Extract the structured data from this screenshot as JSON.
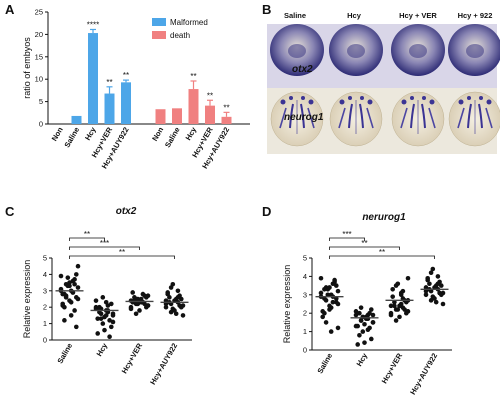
{
  "panels": {
    "A": "A",
    "B": "B",
    "C": "C",
    "D": "D"
  },
  "chart_data": [
    {
      "panel": "A",
      "type": "bar",
      "title": "",
      "ylabel": "ratio of embyos",
      "ylim": [
        0,
        25
      ],
      "yticks": [
        "0",
        "5",
        "10",
        "15",
        "20",
        "25"
      ],
      "colors": {
        "Malformed": "#4da6e8",
        "death": "#f08080"
      },
      "series": [
        {
          "name": "Malformed",
          "categories": [
            "Non",
            "Saline",
            "Hcy",
            "Hcy+VER",
            "Hcy+AUY922"
          ],
          "values": [
            0,
            1.8,
            20.3,
            6.8,
            9.3
          ],
          "errors": [
            0,
            0,
            0.8,
            1.5,
            0.5
          ],
          "sig": [
            "",
            "",
            "****",
            "**",
            "**"
          ]
        },
        {
          "name": "death",
          "categories": [
            "Non",
            "Saline",
            "Hcy",
            "Hcy+VER",
            "Hcy+AUY922"
          ],
          "values": [
            3.3,
            3.5,
            7.8,
            4.1,
            1.6
          ],
          "errors": [
            0,
            0,
            1.8,
            1.2,
            1.0
          ],
          "sig": [
            "",
            "",
            "**",
            "**",
            "**"
          ]
        }
      ]
    },
    {
      "panel": "C",
      "type": "scatter",
      "title": "otx2",
      "ylabel": "Relative expression",
      "ylim": [
        0,
        5
      ],
      "yticks": [
        "0",
        "1",
        "2",
        "3",
        "4",
        "5"
      ],
      "categories": [
        "Saline",
        "Hcy",
        "Hcy+VER",
        "Hcy+AUY922"
      ],
      "means": [
        3.0,
        1.8,
        2.35,
        2.3
      ],
      "groups": [
        [
          3.9,
          3.6,
          3.4,
          3.2,
          3.0,
          2.8,
          2.6,
          2.4,
          2.1,
          3.7,
          3.3,
          3.1,
          2.9,
          2.7,
          2.5,
          2.3,
          2.0,
          4.0,
          3.5,
          2.2,
          1.8,
          3.8,
          3.0,
          2.9,
          2.6,
          4.5,
          1.5,
          1.2,
          0.8,
          3.3,
          2.8,
          3.4
        ],
        [
          1.9,
          1.7,
          1.6,
          1.5,
          1.8,
          2.0,
          2.2,
          1.4,
          1.3,
          1.2,
          1.0,
          2.4,
          2.1,
          1.9,
          1.6,
          1.5,
          1.7,
          0.8,
          0.6,
          0.4,
          0.2,
          2.6,
          2.0,
          1.8,
          1.3,
          1.1,
          2.3,
          1.9
        ],
        [
          2.4,
          2.3,
          2.2,
          2.1,
          2.5,
          2.6,
          2.0,
          2.4,
          2.3,
          2.7,
          2.2,
          1.9,
          2.8,
          2.5,
          2.1,
          2.3,
          2.4,
          2.6,
          1.8,
          2.9,
          2.2,
          2.5,
          2.0,
          2.3,
          1.6,
          2.7
        ],
        [
          2.4,
          2.3,
          2.2,
          2.1,
          2.5,
          2.6,
          2.0,
          2.4,
          2.8,
          2.7,
          1.9,
          2.2,
          3.0,
          3.2,
          1.5,
          1.6,
          2.3,
          2.5,
          1.8,
          2.9,
          2.1,
          3.4,
          2.0,
          2.6,
          1.7
        ]
      ],
      "brackets": [
        {
          "from": 0,
          "to": 1,
          "label": "**"
        },
        {
          "from": 0,
          "to": 2,
          "label": "***"
        },
        {
          "from": 0,
          "to": 3,
          "label": "**"
        }
      ]
    },
    {
      "panel": "D",
      "type": "scatter",
      "title": "nerurog1",
      "ylabel": "Relative expression",
      "ylim": [
        0,
        5
      ],
      "yticks": [
        "0",
        "1",
        "2",
        "3",
        "4",
        "5"
      ],
      "categories": [
        "Saline",
        "Hcy",
        "Hcy+VER",
        "Hcy+AUY922"
      ],
      "means": [
        2.9,
        1.75,
        2.7,
        3.3
      ],
      "groups": [
        [
          3.9,
          3.6,
          3.4,
          3.2,
          3.0,
          2.8,
          2.6,
          2.4,
          2.1,
          3.7,
          3.3,
          3.1,
          2.9,
          2.7,
          2.5,
          2.3,
          2.0,
          3.5,
          2.2,
          1.8,
          3.8,
          3.0,
          2.9,
          2.6,
          1.5,
          1.2,
          1.0,
          3.3,
          2.8,
          3.4
        ],
        [
          1.9,
          1.7,
          1.6,
          1.5,
          1.8,
          2.0,
          2.2,
          1.4,
          1.3,
          1.2,
          1.0,
          2.1,
          1.9,
          1.6,
          1.5,
          1.7,
          0.8,
          0.6,
          0.4,
          0.3,
          2.0,
          1.8,
          1.3,
          1.1,
          2.3,
          1.9
        ],
        [
          2.4,
          2.3,
          2.2,
          2.1,
          2.5,
          2.6,
          2.0,
          2.4,
          3.3,
          2.7,
          2.2,
          1.9,
          2.8,
          3.5,
          3.9,
          3.0,
          2.4,
          2.6,
          1.8,
          2.9,
          2.2,
          3.6,
          2.0,
          3.2,
          1.6,
          2.7,
          3.1
        ],
        [
          3.4,
          3.3,
          3.2,
          3.1,
          3.5,
          3.6,
          3.0,
          3.4,
          3.8,
          3.7,
          2.9,
          3.2,
          4.0,
          4.2,
          2.5,
          2.6,
          3.3,
          3.5,
          2.8,
          3.9,
          3.1,
          4.4,
          3.0,
          3.6,
          2.7
        ]
      ],
      "brackets": [
        {
          "from": 0,
          "to": 1,
          "label": "***"
        },
        {
          "from": 0,
          "to": 2,
          "label": "**"
        },
        {
          "from": 0,
          "to": 3,
          "label": "**"
        }
      ]
    }
  ],
  "panelB": {
    "conditions": [
      "Saline",
      "Hcy",
      "Hcy + VER",
      "Hcy + 922"
    ],
    "genes": [
      "otx2",
      "neurog1"
    ]
  }
}
